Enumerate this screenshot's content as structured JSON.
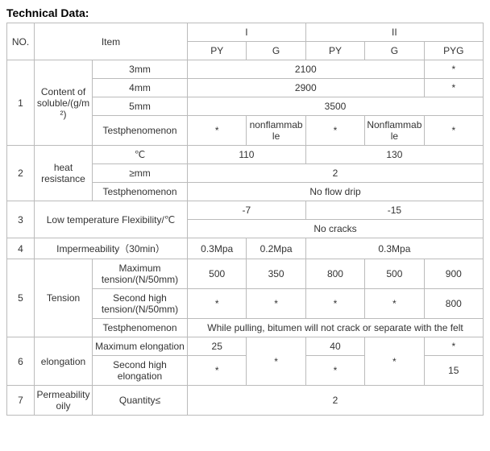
{
  "title": "Technical Data:",
  "header": {
    "no": "NO.",
    "item": "Item",
    "group1": "I",
    "group2": "II",
    "py": "PY",
    "g": "G",
    "pyg": "PYG"
  },
  "r1": {
    "no": "1",
    "cat": "Content of soluble/(g/m²)",
    "a_label": "3mm",
    "a_val": "2100",
    "a_last": "*",
    "b_label": "4mm",
    "b_val": "2900",
    "b_last": "*",
    "c_label": "5mm",
    "c_val": "3500",
    "d_label": "Testphenomenon",
    "d_v1": "*",
    "d_v2": "nonflammable",
    "d_v3": "*",
    "d_v4": "Nonflammable",
    "d_v5": "*"
  },
  "r2": {
    "no": "2",
    "cat": "heat resistance",
    "a_label": "℃",
    "a_v12": "110",
    "a_v345": "130",
    "b_label": "≥mm",
    "b_val": "2",
    "c_label": "Testphenomenon",
    "c_val": "No flow drip"
  },
  "r3": {
    "no": "3",
    "cat": "Low temperature Flexibility/℃",
    "a_v12": "-7",
    "a_v345": "-15",
    "b_val": "No cracks"
  },
  "r4": {
    "no": "4",
    "cat": "Impermeability（30min）",
    "v1": "0.3Mpa",
    "v2": "0.2Mpa",
    "v345": "0.3Mpa"
  },
  "r5": {
    "no": "5",
    "cat": "Tension",
    "a_label": "Maximum tension/(N/50mm)",
    "a1": "500",
    "a2": "350",
    "a3": "800",
    "a4": "500",
    "a5": "900",
    "b_label": "Second high tension/(N/50mm)",
    "b1": "*",
    "b2": "*",
    "b3": "*",
    "b4": "*",
    "b5": "800",
    "c_label": "Testphenomenon",
    "c_val": "While pulling, bitumen will not crack or separate with the felt"
  },
  "r6": {
    "no": "6",
    "cat": "elongation",
    "a_label": "Maximum elongation",
    "a1": "25",
    "a3": "40",
    "a5": "*",
    "b_label": "Second high elongation",
    "b1": "*",
    "b3": "*",
    "b5": "15",
    "shared24_a": "*",
    "shared24_b": "*"
  },
  "r7": {
    "no": "7",
    "cat": "Permeability oily",
    "label": "Quantity≤",
    "val": "2"
  }
}
